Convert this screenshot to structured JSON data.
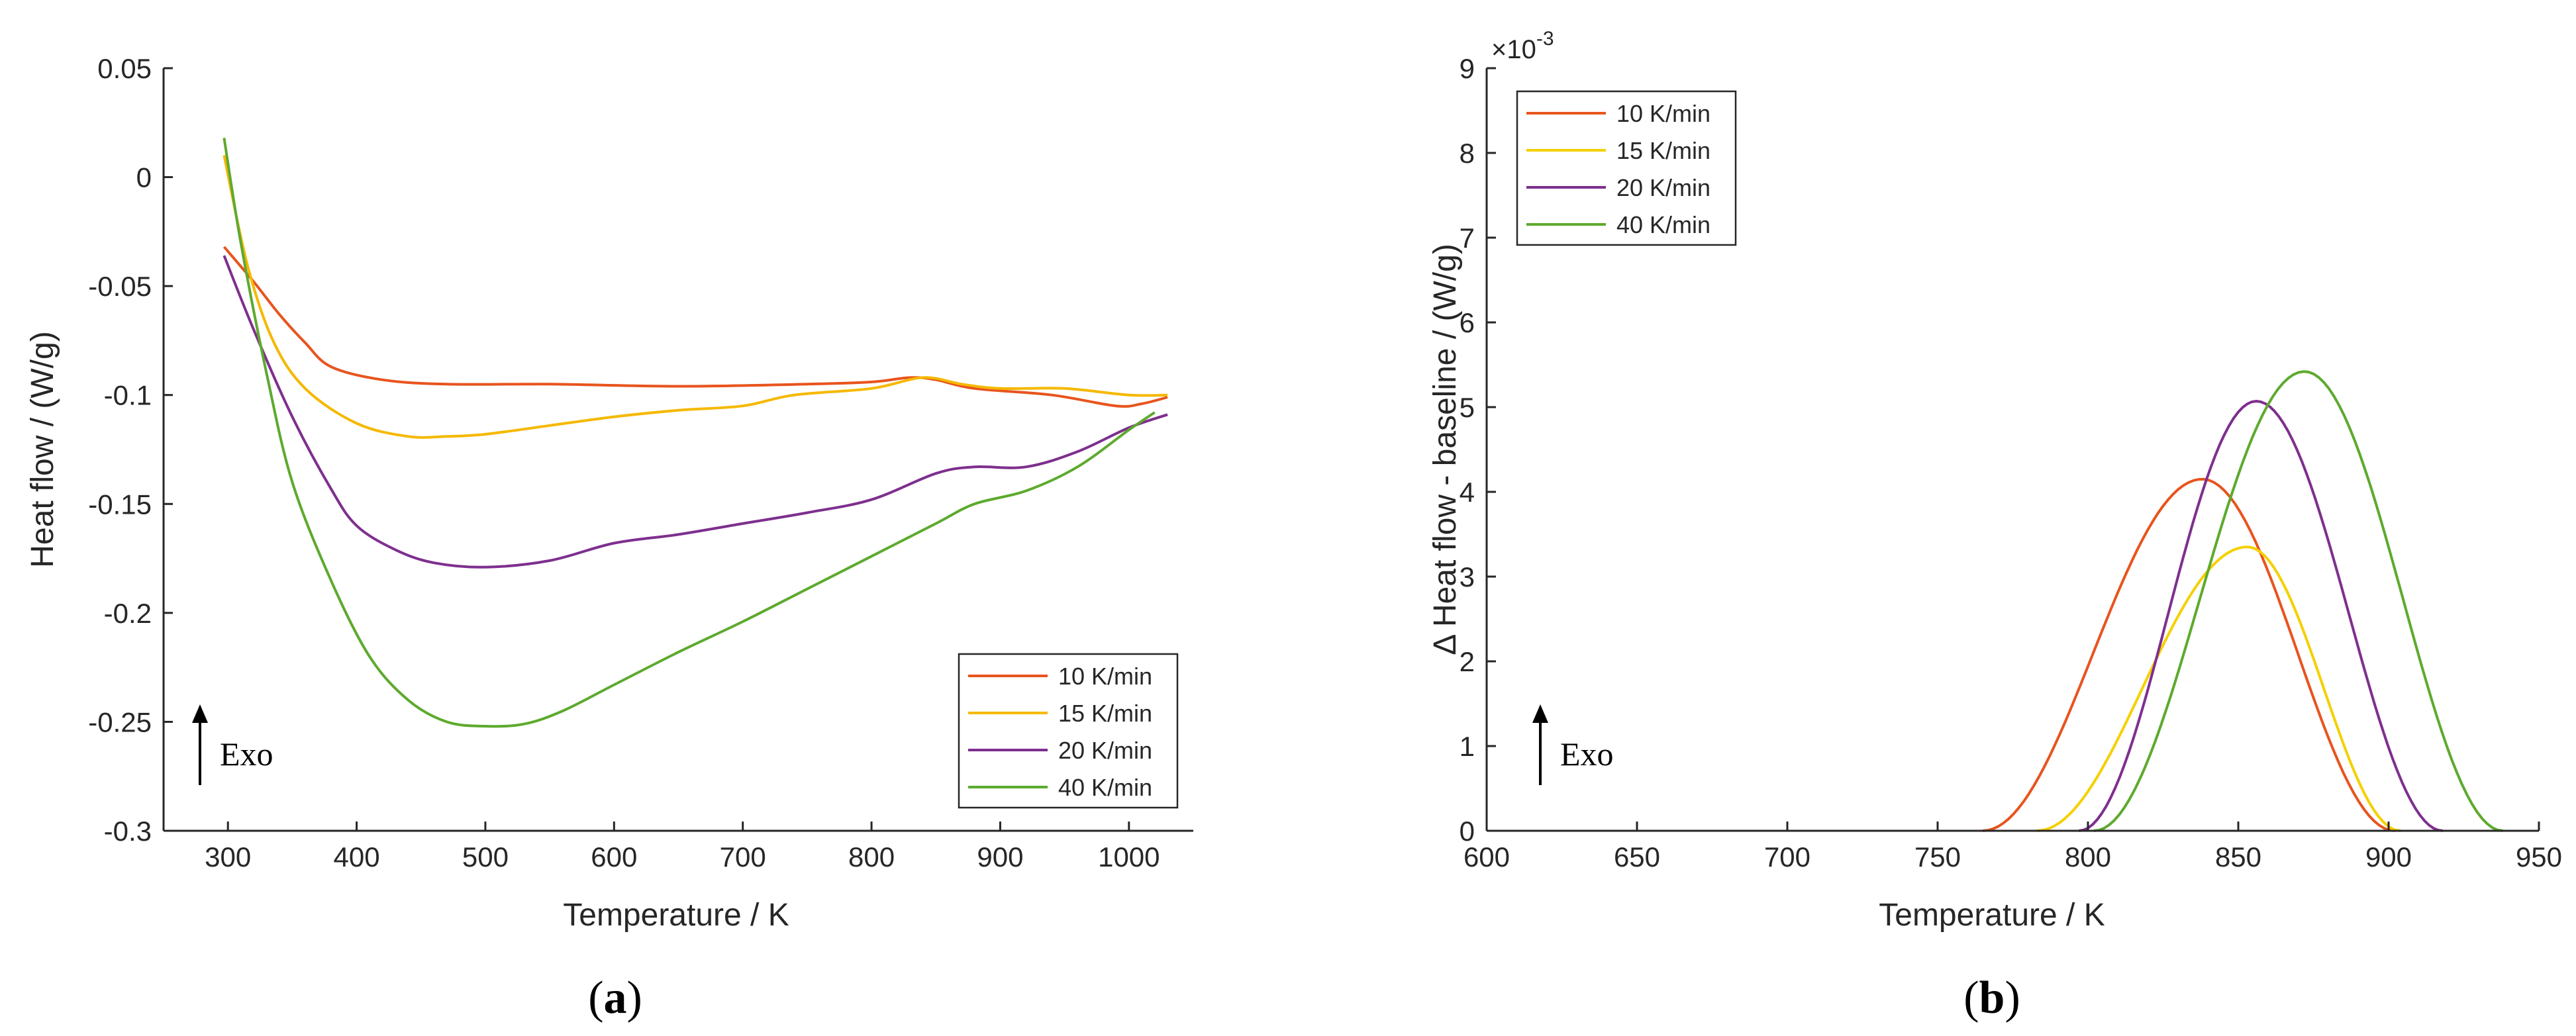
{
  "chart_data": [
    {
      "type": "line",
      "id": "a",
      "caption_letter": "a",
      "xlabel": "Temperature / K",
      "ylabel": "Heat flow / (W/g)",
      "xlim": [
        250,
        1050
      ],
      "ylim": [
        -0.3,
        0.05
      ],
      "xticks": [
        300,
        400,
        500,
        600,
        700,
        800,
        900,
        1000
      ],
      "yticks": [
        -0.3,
        -0.25,
        -0.2,
        -0.15,
        -0.1,
        -0.05,
        0,
        0.05
      ],
      "ytick_labels": [
        "-0.3",
        "-0.25",
        "-0.2",
        "-0.15",
        "-0.1",
        "-0.05",
        "0",
        "0.05"
      ],
      "legend_position": "bottom-right",
      "annotation": "Exo",
      "series": [
        {
          "name": "10 K/min",
          "color": "#E8541E",
          "points": [
            [
              297,
              -0.032
            ],
            [
              320,
              -0.048
            ],
            [
              340,
              -0.063
            ],
            [
              360,
              -0.076
            ],
            [
              380,
              -0.087
            ],
            [
              420,
              -0.093
            ],
            [
              470,
              -0.095
            ],
            [
              550,
              -0.095
            ],
            [
              650,
              -0.096
            ],
            [
              750,
              -0.095
            ],
            [
              800,
              -0.094
            ],
            [
              830,
              -0.092
            ],
            [
              850,
              -0.093
            ],
            [
              880,
              -0.097
            ],
            [
              940,
              -0.1
            ],
            [
              990,
              -0.105
            ],
            [
              1010,
              -0.104
            ],
            [
              1030,
              -0.101
            ]
          ]
        },
        {
          "name": "15 K/min",
          "color": "#F5B800",
          "points": [
            [
              297,
              0.01
            ],
            [
              315,
              -0.04
            ],
            [
              335,
              -0.075
            ],
            [
              360,
              -0.097
            ],
            [
              400,
              -0.113
            ],
            [
              440,
              -0.119
            ],
            [
              470,
              -0.119
            ],
            [
              500,
              -0.118
            ],
            [
              550,
              -0.114
            ],
            [
              600,
              -0.11
            ],
            [
              650,
              -0.107
            ],
            [
              700,
              -0.105
            ],
            [
              740,
              -0.1
            ],
            [
              800,
              -0.097
            ],
            [
              840,
              -0.092
            ],
            [
              870,
              -0.095
            ],
            [
              900,
              -0.097
            ],
            [
              950,
              -0.097
            ],
            [
              1000,
              -0.1
            ],
            [
              1030,
              -0.1
            ]
          ]
        },
        {
          "name": "20 K/min",
          "color": "#7E2F8E",
          "points": [
            [
              297,
              -0.036
            ],
            [
              320,
              -0.07
            ],
            [
              350,
              -0.11
            ],
            [
              380,
              -0.143
            ],
            [
              400,
              -0.16
            ],
            [
              430,
              -0.171
            ],
            [
              460,
              -0.177
            ],
            [
              500,
              -0.179
            ],
            [
              550,
              -0.176
            ],
            [
              600,
              -0.168
            ],
            [
              650,
              -0.164
            ],
            [
              700,
              -0.159
            ],
            [
              750,
              -0.154
            ],
            [
              800,
              -0.148
            ],
            [
              850,
              -0.136
            ],
            [
              880,
              -0.133
            ],
            [
              920,
              -0.133
            ],
            [
              960,
              -0.126
            ],
            [
              1000,
              -0.115
            ],
            [
              1030,
              -0.109
            ]
          ]
        },
        {
          "name": "40 K/min",
          "color": "#5DAA2E",
          "points": [
            [
              297,
              0.018
            ],
            [
              310,
              -0.03
            ],
            [
              330,
              -0.09
            ],
            [
              350,
              -0.14
            ],
            [
              380,
              -0.185
            ],
            [
              410,
              -0.22
            ],
            [
              440,
              -0.24
            ],
            [
              470,
              -0.25
            ],
            [
              500,
              -0.252
            ],
            [
              530,
              -0.251
            ],
            [
              560,
              -0.245
            ],
            [
              600,
              -0.233
            ],
            [
              650,
              -0.218
            ],
            [
              700,
              -0.204
            ],
            [
              750,
              -0.189
            ],
            [
              800,
              -0.174
            ],
            [
              850,
              -0.159
            ],
            [
              880,
              -0.15
            ],
            [
              920,
              -0.144
            ],
            [
              960,
              -0.133
            ],
            [
              1000,
              -0.116
            ],
            [
              1020,
              -0.108
            ]
          ]
        }
      ]
    },
    {
      "type": "line",
      "id": "b",
      "caption_letter": "b",
      "xlabel": "Temperature / K",
      "ylabel": "Δ Heat flow - baseline / (W/g)",
      "y_exponent_base": "×10",
      "y_exponent": "-3",
      "xlim": [
        600,
        950
      ],
      "ylim": [
        0,
        9
      ],
      "xticks": [
        600,
        650,
        700,
        750,
        800,
        850,
        900,
        950
      ],
      "yticks": [
        0,
        1,
        2,
        3,
        4,
        5,
        6,
        7,
        8,
        9
      ],
      "ytick_labels": [
        "0",
        "1",
        "2",
        "3",
        "4",
        "5",
        "6",
        "7",
        "8",
        "9"
      ],
      "legend_position": "top-left",
      "annotation": "Exo",
      "series": [
        {
          "name": "10 K/min",
          "color": "#E8541E",
          "start": 765,
          "peak": 838,
          "end": 902,
          "max": 4.15
        },
        {
          "name": "15 K/min",
          "color": "#F5D000",
          "start": 783,
          "peak": 853,
          "end": 904,
          "max": 3.35
        },
        {
          "name": "20 K/min",
          "color": "#7E2F8E",
          "start": 797,
          "peak": 856,
          "end": 918,
          "max": 5.07
        },
        {
          "name": "40 K/min",
          "color": "#5DAA2E",
          "start": 802,
          "peak": 872,
          "end": 938,
          "max": 5.42
        }
      ]
    }
  ]
}
